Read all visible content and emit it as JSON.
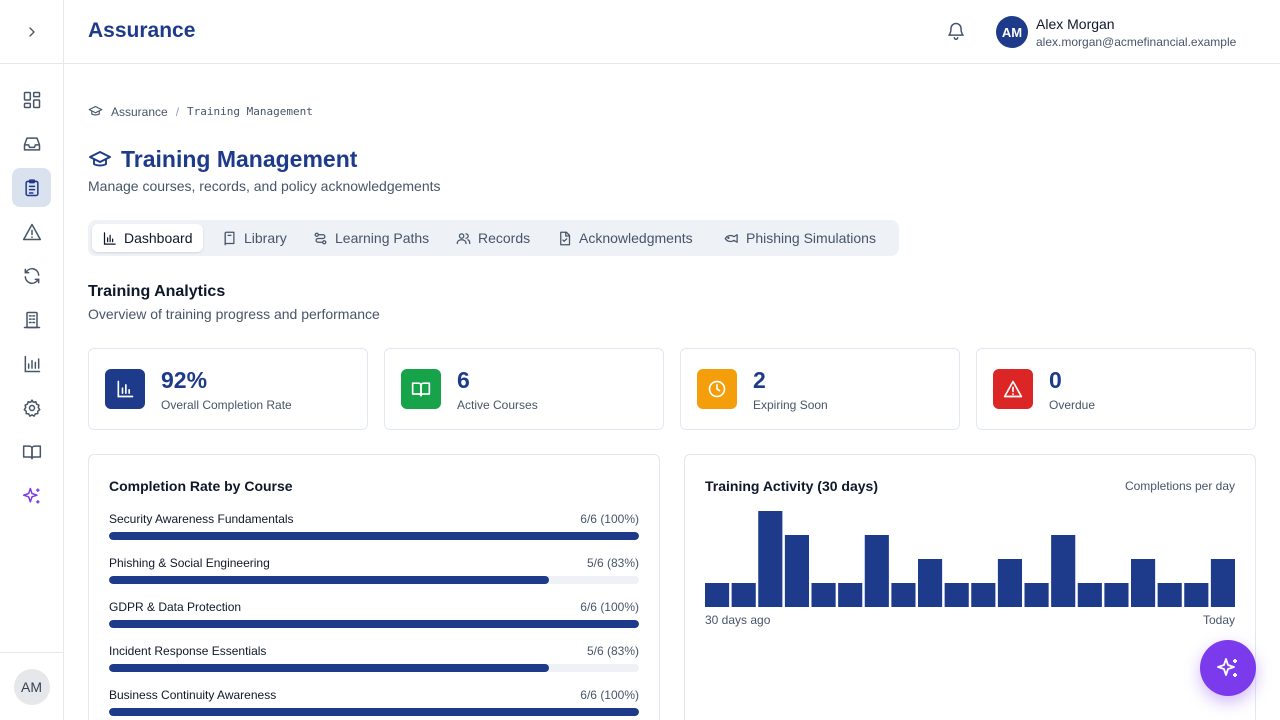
{
  "header": {
    "app_title": "Assurance",
    "user": {
      "initials": "AM",
      "name": "Alex Morgan",
      "email": "alex.morgan@acmefinancial.example"
    }
  },
  "rail": {
    "items": [
      {
        "icon": "dashboard-grid-icon"
      },
      {
        "icon": "inbox-icon"
      },
      {
        "icon": "clipboard-icon",
        "active": true
      },
      {
        "icon": "alert-triangle-icon"
      },
      {
        "icon": "refresh-icon"
      },
      {
        "icon": "building-icon"
      },
      {
        "icon": "bar-chart-icon"
      },
      {
        "icon": "gear-icon"
      },
      {
        "icon": "book-open-icon"
      },
      {
        "icon": "sparkles-icon"
      }
    ],
    "user_initials": "AM"
  },
  "breadcrumb": {
    "root": "Assurance",
    "current": "Training Management"
  },
  "page": {
    "title": "Training Management",
    "subtitle": "Manage courses, records, and policy acknowledgements"
  },
  "tabs": [
    {
      "label": "Dashboard",
      "icon": "bar-chart-icon",
      "active": true
    },
    {
      "label": "Library",
      "icon": "book-icon"
    },
    {
      "label": "Learning Paths",
      "icon": "route-icon"
    },
    {
      "label": "Records",
      "icon": "users-icon"
    },
    {
      "label": "Acknowledgments",
      "icon": "file-check-icon"
    },
    {
      "label": "Phishing Simulations",
      "icon": "fish-icon"
    }
  ],
  "analytics": {
    "title": "Training Analytics",
    "subtitle": "Overview of training progress and performance",
    "stats": [
      {
        "value": "92%",
        "label": "Overall Completion Rate",
        "color": "#1e3a8a",
        "icon": "bar-chart-icon"
      },
      {
        "value": "6",
        "label": "Active Courses",
        "color": "#16a34a",
        "icon": "book-open-icon"
      },
      {
        "value": "2",
        "label": "Expiring Soon",
        "color": "#f59e0b",
        "icon": "clock-icon"
      },
      {
        "value": "0",
        "label": "Overdue",
        "color": "#dc2626",
        "icon": "alert-triangle-icon"
      }
    ]
  },
  "completion": {
    "title": "Completion Rate by Course",
    "courses": [
      {
        "name": "Security Awareness Fundamentals",
        "value": "6/6 (100%)",
        "percent": 100
      },
      {
        "name": "Phishing & Social Engineering",
        "value": "5/6 (83%)",
        "percent": 83
      },
      {
        "name": "GDPR & Data Protection",
        "value": "6/6 (100%)",
        "percent": 100
      },
      {
        "name": "Incident Response Essentials",
        "value": "5/6 (83%)",
        "percent": 83
      },
      {
        "name": "Business Continuity Awareness",
        "value": "6/6 (100%)",
        "percent": 100
      }
    ]
  },
  "activity": {
    "title": "Training Activity (30 days)",
    "note": "Completions per day",
    "start_label": "30 days ago",
    "end_label": "Today"
  },
  "chart_data": {
    "type": "bar",
    "title": "Training Activity (30 days)",
    "xlabel": "",
    "ylabel": "Completions per day",
    "values": [
      1,
      1,
      4,
      3,
      1,
      1,
      3,
      1,
      2,
      1,
      1,
      2,
      1,
      3,
      1,
      1,
      2,
      1,
      1,
      2
    ],
    "ylim": [
      0,
      4
    ],
    "grid": false
  },
  "colors": {
    "brand": "#1e3a8a",
    "accent": "#7c3aed",
    "track": "#eef1f5"
  }
}
